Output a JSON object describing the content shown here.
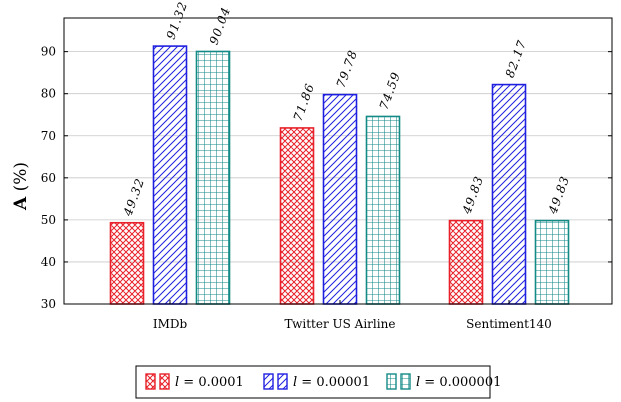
{
  "chart_data": {
    "type": "bar",
    "categories": [
      "IMDb",
      "Twitter US Airline",
      "Sentiment140"
    ],
    "series": [
      {
        "name": "l = 0.0001",
        "values": [
          49.32,
          71.86,
          49.83
        ],
        "color": "#e8212a",
        "pattern": "crosshatch"
      },
      {
        "name": "l = 0.00001",
        "values": [
          91.32,
          79.78,
          82.17
        ],
        "color": "#1f1fe0",
        "pattern": "diagonal"
      },
      {
        "name": "l = 0.000001",
        "values": [
          90.04,
          74.59,
          49.83
        ],
        "color": "#138a86",
        "pattern": "grid"
      }
    ],
    "data_labels": [
      [
        "49.32",
        "71.86",
        "49.83"
      ],
      [
        "91.32",
        "79.78",
        "82.17"
      ],
      [
        "90.04",
        "74.59",
        "49.83"
      ]
    ],
    "legend_labels": [
      {
        "var": "l",
        "eq": " = 0.0001"
      },
      {
        "var": "l",
        "eq": " = 0.00001"
      },
      {
        "var": "l",
        "eq": " = 0.000001"
      }
    ],
    "ylabel_bold": "A",
    "ylabel_rest": " (%)",
    "xlabel": "",
    "ylim": [
      30,
      98
    ],
    "yticks": [
      "30",
      "40",
      "50",
      "60",
      "70",
      "80",
      "90"
    ],
    "grid": "horizontal",
    "legend_position": "bottom-center"
  }
}
